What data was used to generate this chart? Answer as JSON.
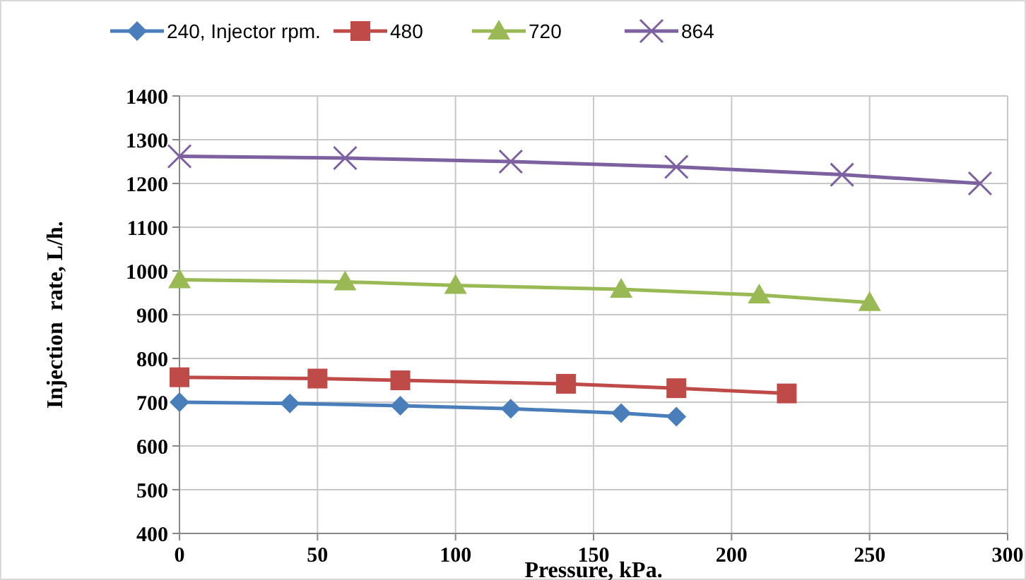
{
  "chart_data": {
    "type": "line",
    "xlabel": "Pressure, kPa.",
    "ylabel": "Injection  rate, L/h.",
    "xlim": [
      0,
      300
    ],
    "xticks": [
      0,
      50,
      100,
      150,
      200,
      250,
      300
    ],
    "ylim": [
      400,
      1400
    ],
    "yticks": [
      400,
      500,
      600,
      700,
      800,
      900,
      1000,
      1100,
      1200,
      1300,
      1400
    ],
    "grid": true,
    "legend": "top",
    "series": [
      {
        "name": "240, Injector rpm.",
        "color": "#4a7ebb",
        "marker": "diamond",
        "x": [
          0,
          40,
          80,
          120,
          160,
          180
        ],
        "values": [
          700,
          697,
          692,
          685,
          675,
          667
        ]
      },
      {
        "name": "480",
        "color": "#be4b48",
        "marker": "square",
        "x": [
          0,
          50,
          80,
          140,
          180,
          220
        ],
        "values": [
          757,
          754,
          750,
          742,
          732,
          720
        ]
      },
      {
        "name": "720",
        "color": "#98b954",
        "marker": "triangle",
        "x": [
          0,
          60,
          100,
          160,
          210,
          250
        ],
        "values": [
          980,
          975,
          967,
          958,
          945,
          928
        ]
      },
      {
        "name": "864",
        "color": "#7d60a0",
        "marker": "cross",
        "x": [
          0,
          60,
          120,
          180,
          240,
          290
        ],
        "values": [
          1262,
          1258,
          1250,
          1238,
          1220,
          1200
        ]
      }
    ]
  }
}
